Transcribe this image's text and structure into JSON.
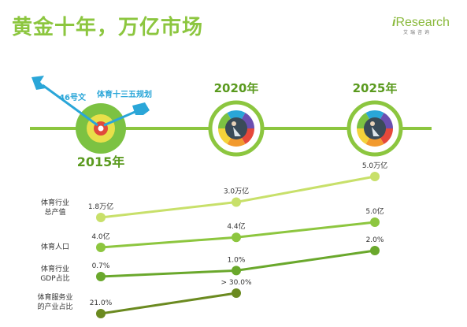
{
  "header": {
    "title": "黄金十年，万亿市场",
    "logo_i": "i",
    "logo_rest": "Research",
    "logo_sub": "艾瑞咨询"
  },
  "timeline": {
    "milestones": [
      "2015年",
      "2020年",
      "2025年"
    ],
    "arrow_labels": [
      "46号文",
      "体育十三五规划"
    ]
  },
  "colors": {
    "accent": "#8cc63f",
    "dark_green": "#5a9a1e",
    "row1_line": "#c8e06a",
    "row2_line": "#8dc63f",
    "row3_line": "#6aa82c",
    "row4_line": "#6b8a20",
    "arrow_blue": "#2aa6d8",
    "target_green": "#7cc242",
    "target_yellow": "#e8e04a",
    "target_red": "#e04a3c"
  },
  "chart_data": {
    "type": "line",
    "categories": [
      "2015年",
      "2020年",
      "2025年"
    ],
    "series": [
      {
        "name": "体育行业总产值",
        "label_lines": [
          "体育行业",
          "总产值"
        ],
        "values": [
          1.8,
          3.0,
          5.0
        ],
        "value_labels": [
          "1.8万亿",
          "3.0万亿",
          "5.0万亿"
        ]
      },
      {
        "name": "体育人口",
        "label_lines": [
          "体育人口"
        ],
        "values": [
          4.0,
          4.4,
          5.0
        ],
        "value_labels": [
          "4.0亿",
          "4.4亿",
          "5.0亿"
        ]
      },
      {
        "name": "体育行业GDP占比",
        "label_lines": [
          "体育行业",
          "GDP占比"
        ],
        "values": [
          0.7,
          1.0,
          2.0
        ],
        "value_labels": [
          "0.7%",
          "1.0%",
          "2.0%"
        ]
      },
      {
        "name": "体育服务业的产业占比",
        "label_lines": [
          "体育服务业",
          "的产业占比"
        ],
        "values": [
          21.0,
          30.0,
          null
        ],
        "value_labels": [
          "21.0%",
          "> 30.0%",
          ""
        ]
      }
    ]
  }
}
